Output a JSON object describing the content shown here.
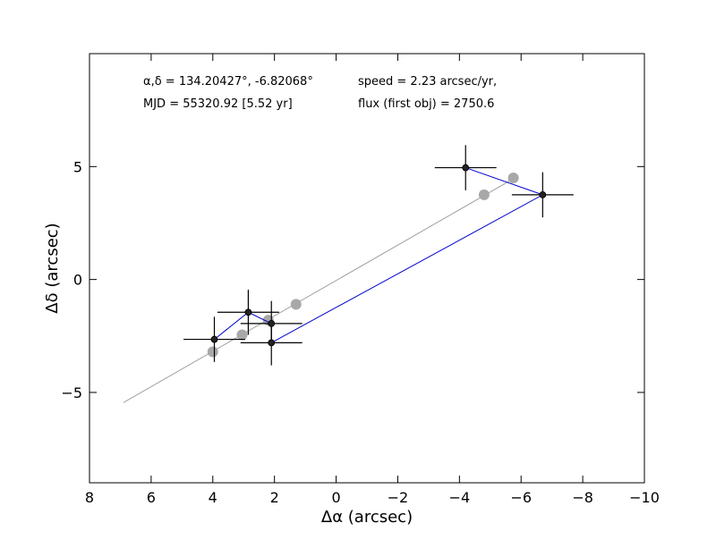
{
  "chart_data": {
    "type": "scatter",
    "title": "",
    "xlabel": "Δα (arcsec)",
    "ylabel": "Δδ (arcsec)",
    "xlim": [
      8,
      -10
    ],
    "ylim": [
      -9,
      10
    ],
    "xticks": [
      8,
      6,
      4,
      2,
      0,
      -2,
      -4,
      -6,
      -8,
      -10
    ],
    "yticks": [
      -5,
      0,
      5
    ],
    "xtick_labels": [
      "8",
      "6",
      "4",
      "2",
      "0",
      "−2",
      "−4",
      "−6",
      "−8",
      "−10"
    ],
    "ytick_labels": [
      "−5",
      "0",
      "5"
    ],
    "grid": false,
    "annotations": {
      "coords": "α,δ = 134.20427°, -6.82068°",
      "mjd": "MJD = 55320.92 [5.52 yr]",
      "speed": "speed = 2.23 arcsec/yr,",
      "flux": "flux (first obj) = 2750.6"
    },
    "series": [
      {
        "role": "fit-line",
        "color": "#a0a0a0",
        "x": [
          6.9,
          -5.8
        ],
        "y": [
          -5.45,
          4.5
        ]
      },
      {
        "role": "model-points",
        "color": "#a8a8a8",
        "x": [
          4.0,
          3.05,
          2.2,
          1.3,
          -4.8,
          -5.75
        ],
        "y": [
          -3.2,
          -2.45,
          -1.8,
          -1.1,
          3.75,
          4.5
        ]
      },
      {
        "role": "observed-path",
        "color": "#0000cc",
        "x": [
          3.95,
          2.85,
          2.1,
          2.1,
          -6.7,
          -4.2
        ],
        "y": [
          -2.65,
          -1.45,
          -1.95,
          -2.8,
          3.75,
          4.95
        ]
      },
      {
        "role": "observed-points",
        "color": "#000000",
        "points": [
          {
            "x": 3.95,
            "y": -2.65,
            "xerr": 1.0,
            "yerr": 1.0
          },
          {
            "x": 2.85,
            "y": -1.45,
            "xerr": 1.0,
            "yerr": 1.0
          },
          {
            "x": 2.1,
            "y": -1.95,
            "xerr": 1.0,
            "yerr": 1.0
          },
          {
            "x": 2.1,
            "y": -2.8,
            "xerr": 1.0,
            "yerr": 1.0
          },
          {
            "x": -4.2,
            "y": 4.95,
            "xerr": 1.0,
            "yerr": 1.0
          },
          {
            "x": -6.7,
            "y": 3.75,
            "xerr": 1.0,
            "yerr": 1.0
          }
        ]
      }
    ]
  }
}
